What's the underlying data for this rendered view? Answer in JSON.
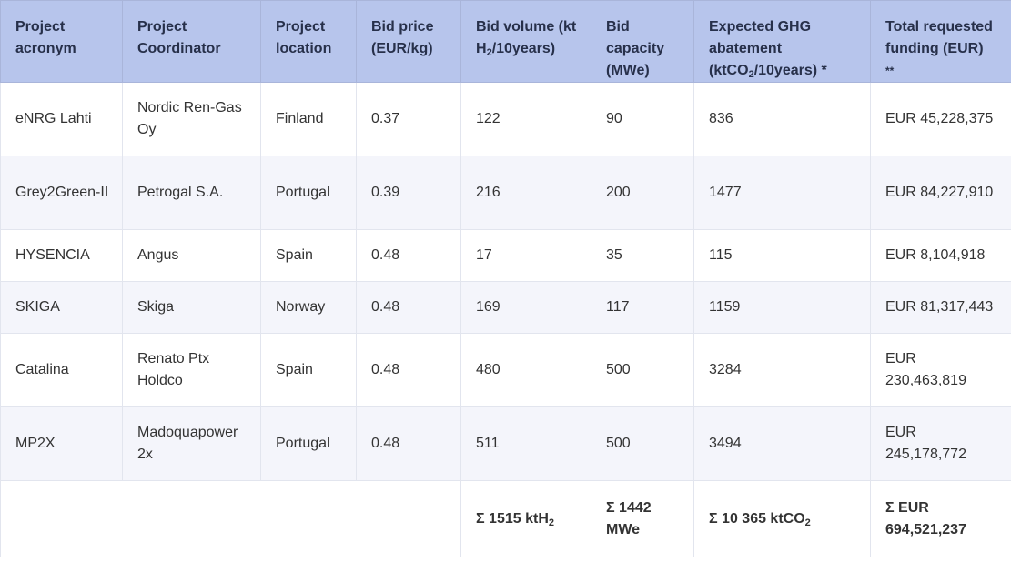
{
  "table": {
    "headers": {
      "acronym": "Project acronym",
      "coordinator": "Project Coordinator",
      "location": "Project location",
      "bid_price": "Bid price (EUR/kg)",
      "bid_volume_pre": "Bid volume (kt H",
      "bid_volume_sub": "2",
      "bid_volume_post": "/10years)",
      "bid_capacity": "Bid capacity (MWe)",
      "ghg_pre": "Expected GHG abatement (ktCO",
      "ghg_sub": "2",
      "ghg_post": "/10years) *",
      "funding": "Total requested funding (EUR)",
      "funding_note": "**"
    },
    "rows": [
      {
        "acronym": "eNRG Lahti",
        "coordinator": "Nordic Ren-Gas Oy",
        "location": "Finland",
        "bid_price": "0.37",
        "bid_volume": "122",
        "bid_capacity": "90",
        "ghg": "836",
        "funding": "EUR 45,228,375"
      },
      {
        "acronym": "Grey2Green-II",
        "coordinator": "Petrogal S.A.",
        "location": "Portugal",
        "bid_price": "0.39",
        "bid_volume": "216",
        "bid_capacity": "200",
        "ghg": "1477",
        "funding": "EUR 84,227,910"
      },
      {
        "acronym": "HYSENCIA",
        "coordinator": "Angus",
        "location": "Spain",
        "bid_price": "0.48",
        "bid_volume": "17",
        "bid_capacity": "35",
        "ghg": "115",
        "funding": "EUR 8,104,918"
      },
      {
        "acronym": "SKIGA",
        "coordinator": "Skiga",
        "location": "Norway",
        "bid_price": "0.48",
        "bid_volume": "169",
        "bid_capacity": "117",
        "ghg": "1159",
        "funding": "EUR 81,317,443"
      },
      {
        "acronym": "Catalina",
        "coordinator": "Renato Ptx Holdco",
        "location": "Spain",
        "bid_price": "0.48",
        "bid_volume": "480",
        "bid_capacity": "500",
        "ghg": "3284",
        "funding": "EUR 230,463,819"
      },
      {
        "acronym": "MP2X",
        "coordinator": "Madoquapower 2x",
        "location": "Portugal",
        "bid_price": "0.48",
        "bid_volume": "511",
        "bid_capacity": "500",
        "ghg": "3494",
        "funding": "EUR 245,178,772"
      }
    ],
    "totals": {
      "bid_volume_pre": "Σ 1515 ktH",
      "bid_volume_sub": "2",
      "bid_capacity": "Σ 1442 MWe",
      "ghg_pre": "Σ 10 365 ktCO",
      "ghg_sub": "2",
      "funding": "Σ EUR 694,521,237"
    }
  }
}
